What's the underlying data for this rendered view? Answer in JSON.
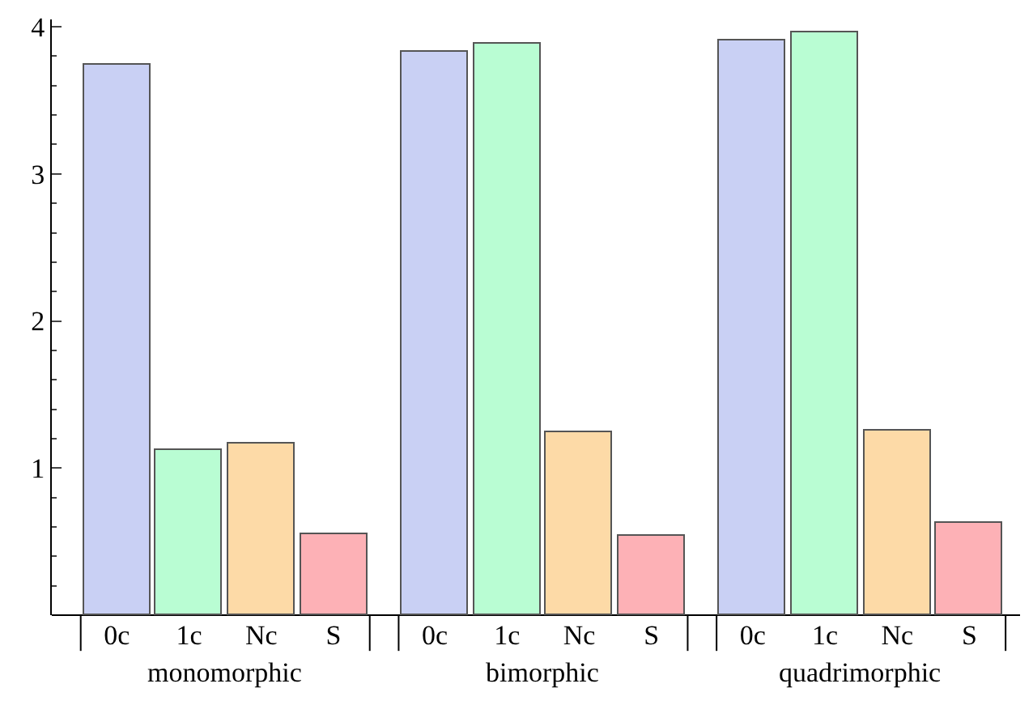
{
  "chart_data": {
    "type": "bar",
    "categories": [
      "monomorphic",
      "bimorphic",
      "quadrimorphic"
    ],
    "series": [
      {
        "name": "0c",
        "color": "#c9d0f4",
        "values": [
          3.74,
          3.83,
          3.91
        ]
      },
      {
        "name": "1c",
        "color": "#b9fdd3",
        "values": [
          1.12,
          3.88,
          3.96
        ]
      },
      {
        "name": "Nc",
        "color": "#fddaa7",
        "values": [
          1.17,
          1.24,
          1.25
        ]
      },
      {
        "name": "S",
        "color": "#fdb1b6",
        "values": [
          0.55,
          0.54,
          0.63
        ]
      }
    ],
    "ylim": [
      0,
      4.05
    ],
    "yticks": [
      1,
      2,
      3,
      4
    ],
    "legend": false
  }
}
